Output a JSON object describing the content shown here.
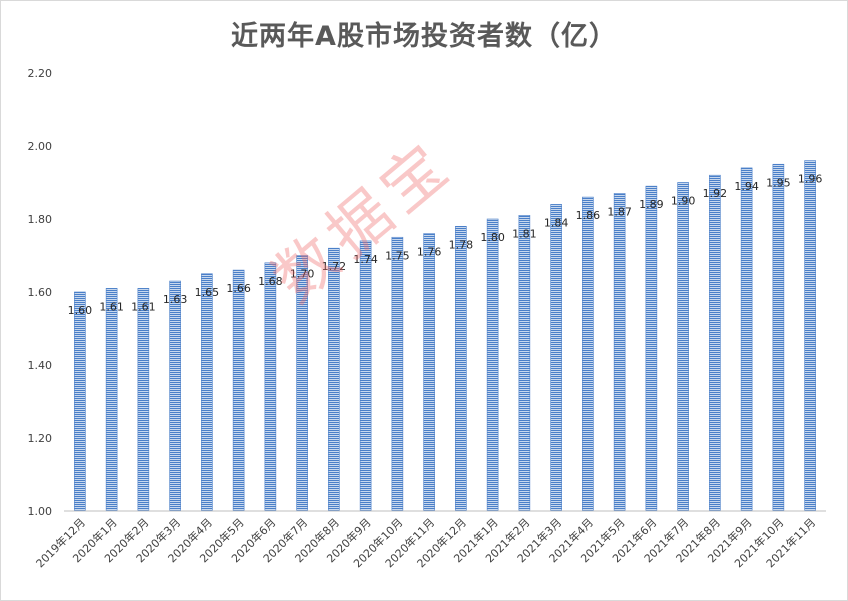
{
  "chart_data": {
    "type": "bar",
    "title": "近两年A股市场投资者数（亿）",
    "xlabel": "",
    "ylabel": "",
    "ylim": [
      1.0,
      2.2
    ],
    "yticks": [
      "1.00",
      "1.20",
      "1.40",
      "1.60",
      "1.80",
      "2.00",
      "2.20"
    ],
    "grid": false,
    "categories": [
      "2019年12月",
      "2020年1月",
      "2020年2月",
      "2020年3月",
      "2020年4月",
      "2020年5月",
      "2020年6月",
      "2020年7月",
      "2020年8月",
      "2020年9月",
      "2020年10月",
      "2020年11月",
      "2020年12月",
      "2021年1月",
      "2021年2月",
      "2021年3月",
      "2021年4月",
      "2021年5月",
      "2021年6月",
      "2021年7月",
      "2021年8月",
      "2021年9月",
      "2021年10月",
      "2021年11月"
    ],
    "values": [
      1.6,
      1.61,
      1.61,
      1.63,
      1.65,
      1.66,
      1.68,
      1.7,
      1.72,
      1.74,
      1.75,
      1.76,
      1.78,
      1.8,
      1.81,
      1.84,
      1.86,
      1.87,
      1.89,
      1.9,
      1.92,
      1.94,
      1.95,
      1.96
    ],
    "data_labels": [
      "1.60",
      "1.61",
      "1.61",
      "1.63",
      "1.65",
      "1.66",
      "1.68",
      "1.70",
      "1.72",
      "1.74",
      "1.75",
      "1.76",
      "1.78",
      "1.80",
      "1.81",
      "1.84",
      "1.86",
      "1.87",
      "1.89",
      "1.90",
      "1.92",
      "1.94",
      "1.95",
      "1.96"
    ],
    "bar_color": "#4a7fc8"
  },
  "watermark": "数据宝"
}
